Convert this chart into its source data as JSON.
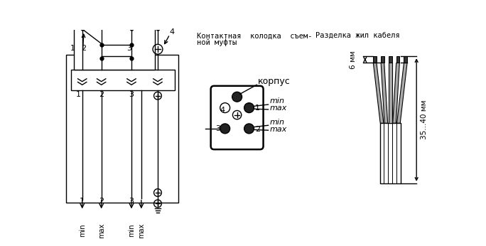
{
  "bg_color": "#ffffff",
  "line_color": "#000000",
  "section2_title_line1": "Контактная  колодка  съем-",
  "section2_title_line2": "ной муфты",
  "section3_title": "Разделка жил кабеля",
  "korpus_label": "корпус",
  "min_label": "min",
  "max_label": "max",
  "dim_6mm": "6 мм",
  "dim_35_40mm": "35...40 мм"
}
